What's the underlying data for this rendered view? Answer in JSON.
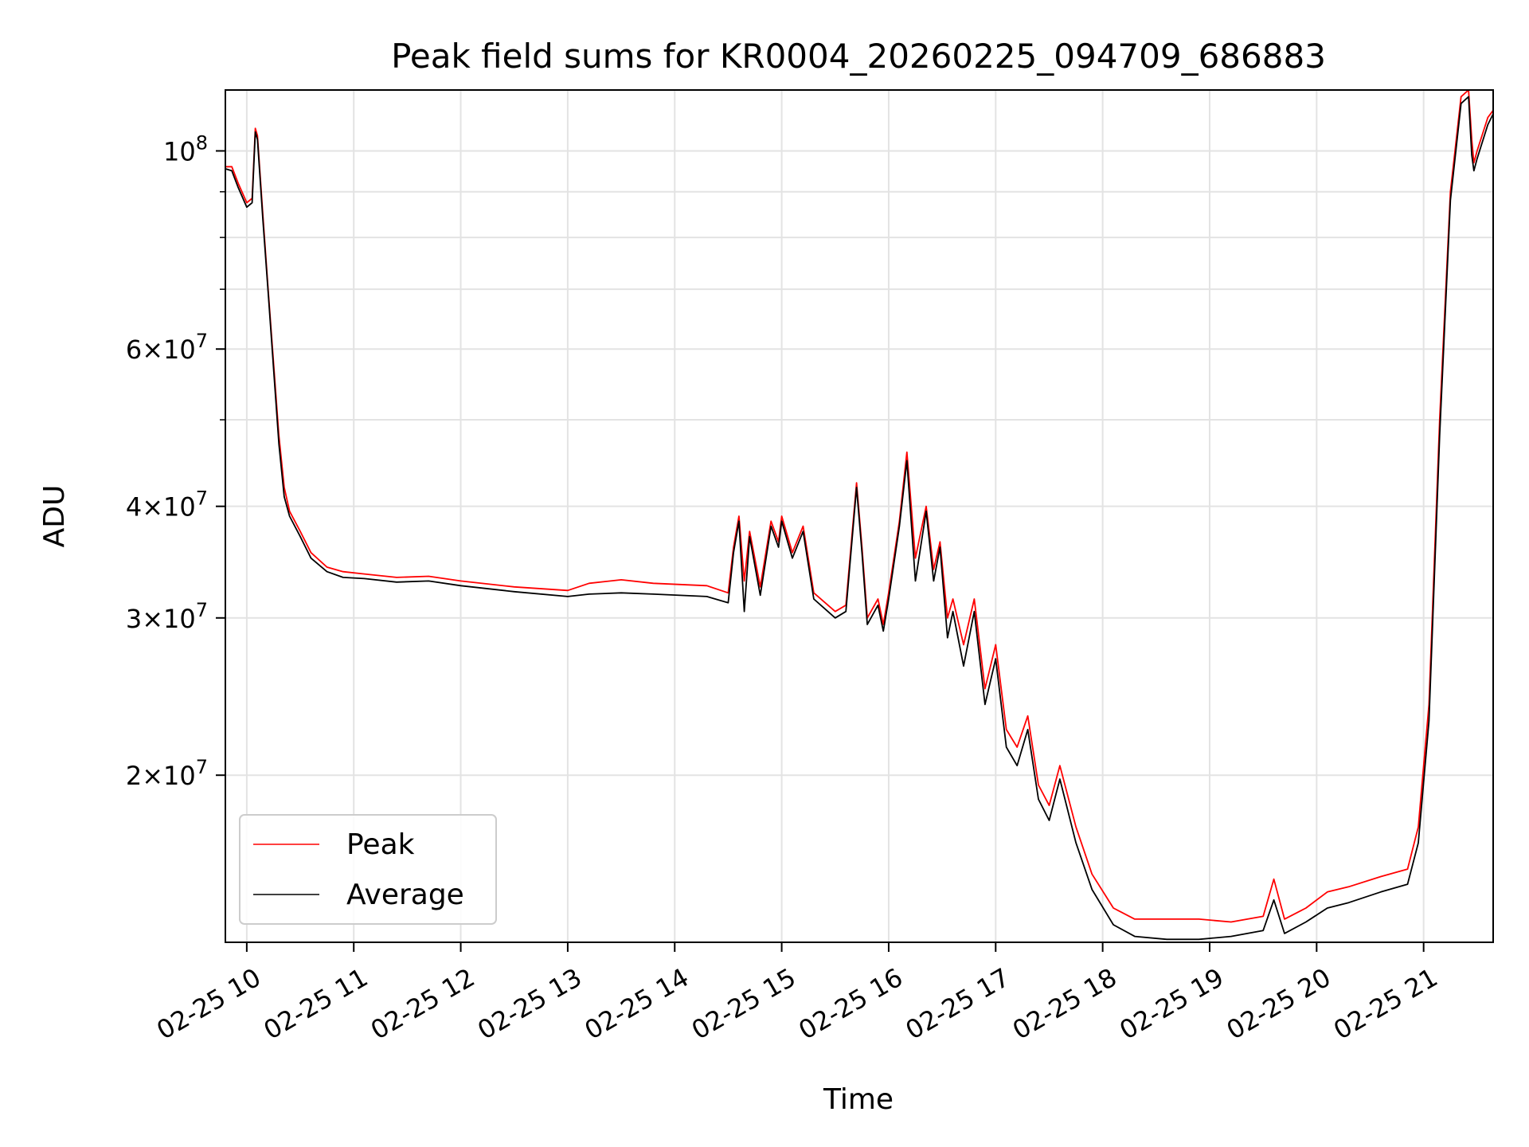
{
  "chart_data": {
    "type": "line",
    "title": "Peak field sums for KR0004_20260225_094709_686883",
    "xlabel": "Time",
    "ylabel": "ADU",
    "yscale": "log",
    "grid": true,
    "legend_position": "lower-left",
    "xlim": [
      9.8,
      21.65
    ],
    "ylim": [
      13000000,
      117000000
    ],
    "x_units": "hours (2026-02-25)",
    "x_ticks": [
      {
        "value": 10,
        "label": "02-25 10"
      },
      {
        "value": 11,
        "label": "02-25 11"
      },
      {
        "value": 12,
        "label": "02-25 12"
      },
      {
        "value": 13,
        "label": "02-25 13"
      },
      {
        "value": 14,
        "label": "02-25 14"
      },
      {
        "value": 15,
        "label": "02-25 15"
      },
      {
        "value": 16,
        "label": "02-25 16"
      },
      {
        "value": 17,
        "label": "02-25 17"
      },
      {
        "value": 18,
        "label": "02-25 18"
      },
      {
        "value": 19,
        "label": "02-25 19"
      },
      {
        "value": 20,
        "label": "02-25 20"
      },
      {
        "value": 21,
        "label": "02-25 21"
      }
    ],
    "y_major_ticks": [
      {
        "value": 100000000,
        "base": "10",
        "exp": "8",
        "mantissa": ""
      },
      {
        "value": 60000000,
        "base": "10",
        "exp": "7",
        "mantissa": "6"
      },
      {
        "value": 40000000,
        "base": "10",
        "exp": "7",
        "mantissa": "4"
      },
      {
        "value": 30000000,
        "base": "10",
        "exp": "7",
        "mantissa": "3"
      },
      {
        "value": 20000000,
        "base": "10",
        "exp": "7",
        "mantissa": "2"
      }
    ],
    "y_minor_ticks": [
      90000000,
      80000000,
      70000000,
      50000000
    ],
    "series": [
      {
        "name": "Peak",
        "color": "#ff0000",
        "points": [
          [
            9.8,
            96000000
          ],
          [
            9.86,
            96000000
          ],
          [
            9.92,
            92000000
          ],
          [
            10.0,
            87500000
          ],
          [
            10.05,
            88500000
          ],
          [
            10.08,
            106000000
          ],
          [
            10.1,
            104000000
          ],
          [
            10.15,
            85000000
          ],
          [
            10.2,
            70000000
          ],
          [
            10.3,
            48000000
          ],
          [
            10.35,
            42000000
          ],
          [
            10.4,
            39500000
          ],
          [
            10.5,
            37500000
          ],
          [
            10.6,
            35500000
          ],
          [
            10.75,
            34200000
          ],
          [
            10.9,
            33800000
          ],
          [
            11.1,
            33600000
          ],
          [
            11.4,
            33300000
          ],
          [
            11.7,
            33400000
          ],
          [
            12.0,
            33000000
          ],
          [
            12.5,
            32500000
          ],
          [
            13.0,
            32200000
          ],
          [
            13.2,
            32800000
          ],
          [
            13.5,
            33100000
          ],
          [
            13.8,
            32800000
          ],
          [
            14.3,
            32600000
          ],
          [
            14.5,
            32000000
          ],
          [
            14.55,
            36000000
          ],
          [
            14.6,
            39000000
          ],
          [
            14.65,
            33000000
          ],
          [
            14.7,
            37500000
          ],
          [
            14.8,
            32500000
          ],
          [
            14.9,
            38500000
          ],
          [
            14.97,
            36500000
          ],
          [
            15.0,
            39000000
          ],
          [
            15.1,
            35500000
          ],
          [
            15.2,
            38000000
          ],
          [
            15.3,
            32000000
          ],
          [
            15.5,
            30500000
          ],
          [
            15.6,
            31000000
          ],
          [
            15.7,
            42500000
          ],
          [
            15.75,
            36000000
          ],
          [
            15.8,
            30000000
          ],
          [
            15.9,
            31500000
          ],
          [
            15.95,
            29500000
          ],
          [
            16.0,
            32000000
          ],
          [
            16.1,
            38500000
          ],
          [
            16.17,
            46000000
          ],
          [
            16.25,
            35000000
          ],
          [
            16.35,
            40000000
          ],
          [
            16.42,
            34000000
          ],
          [
            16.48,
            36500000
          ],
          [
            16.55,
            30000000
          ],
          [
            16.6,
            31500000
          ],
          [
            16.7,
            28000000
          ],
          [
            16.8,
            31500000
          ],
          [
            16.9,
            25000000
          ],
          [
            17.0,
            28000000
          ],
          [
            17.1,
            22500000
          ],
          [
            17.2,
            21500000
          ],
          [
            17.3,
            23300000
          ],
          [
            17.4,
            19500000
          ],
          [
            17.5,
            18500000
          ],
          [
            17.6,
            20500000
          ],
          [
            17.75,
            17500000
          ],
          [
            17.9,
            15500000
          ],
          [
            18.1,
            14200000
          ],
          [
            18.3,
            13800000
          ],
          [
            18.6,
            13800000
          ],
          [
            18.9,
            13800000
          ],
          [
            19.2,
            13700000
          ],
          [
            19.5,
            13900000
          ],
          [
            19.6,
            15300000
          ],
          [
            19.7,
            13800000
          ],
          [
            19.9,
            14200000
          ],
          [
            20.1,
            14800000
          ],
          [
            20.3,
            15000000
          ],
          [
            20.6,
            15400000
          ],
          [
            20.85,
            15700000
          ],
          [
            20.95,
            17500000
          ],
          [
            21.05,
            24000000
          ],
          [
            21.15,
            50000000
          ],
          [
            21.25,
            90000000
          ],
          [
            21.35,
            115000000
          ],
          [
            21.42,
            117000000
          ],
          [
            21.45,
            103000000
          ],
          [
            21.47,
            97000000
          ],
          [
            21.5,
            100000000
          ],
          [
            21.6,
            109000000
          ],
          [
            21.65,
            111000000
          ]
        ]
      },
      {
        "name": "Average",
        "color": "#000000",
        "points": [
          [
            9.8,
            95500000
          ],
          [
            9.86,
            95000000
          ],
          [
            9.92,
            91000000
          ],
          [
            10.0,
            86500000
          ],
          [
            10.05,
            87500000
          ],
          [
            10.08,
            105000000
          ],
          [
            10.1,
            103000000
          ],
          [
            10.15,
            84000000
          ],
          [
            10.2,
            69500000
          ],
          [
            10.3,
            47000000
          ],
          [
            10.35,
            41000000
          ],
          [
            10.4,
            39000000
          ],
          [
            10.5,
            37000000
          ],
          [
            10.6,
            35000000
          ],
          [
            10.75,
            33800000
          ],
          [
            10.9,
            33300000
          ],
          [
            11.1,
            33200000
          ],
          [
            11.4,
            32900000
          ],
          [
            11.7,
            33000000
          ],
          [
            12.0,
            32600000
          ],
          [
            12.5,
            32100000
          ],
          [
            13.0,
            31700000
          ],
          [
            13.2,
            31900000
          ],
          [
            13.5,
            32000000
          ],
          [
            13.8,
            31900000
          ],
          [
            14.3,
            31700000
          ],
          [
            14.5,
            31200000
          ],
          [
            14.55,
            35500000
          ],
          [
            14.6,
            38500000
          ],
          [
            14.65,
            30500000
          ],
          [
            14.7,
            37000000
          ],
          [
            14.8,
            31800000
          ],
          [
            14.9,
            38000000
          ],
          [
            14.97,
            36000000
          ],
          [
            15.0,
            38500000
          ],
          [
            15.1,
            35000000
          ],
          [
            15.2,
            37500000
          ],
          [
            15.3,
            31500000
          ],
          [
            15.5,
            30000000
          ],
          [
            15.6,
            30500000
          ],
          [
            15.7,
            42000000
          ],
          [
            15.75,
            35500000
          ],
          [
            15.8,
            29500000
          ],
          [
            15.9,
            31000000
          ],
          [
            15.95,
            29000000
          ],
          [
            16.0,
            31500000
          ],
          [
            16.1,
            38000000
          ],
          [
            16.17,
            45000000
          ],
          [
            16.25,
            33000000
          ],
          [
            16.35,
            39500000
          ],
          [
            16.42,
            33000000
          ],
          [
            16.48,
            36000000
          ],
          [
            16.55,
            28500000
          ],
          [
            16.6,
            30500000
          ],
          [
            16.7,
            26500000
          ],
          [
            16.8,
            30500000
          ],
          [
            16.9,
            24000000
          ],
          [
            17.0,
            27000000
          ],
          [
            17.1,
            21500000
          ],
          [
            17.2,
            20500000
          ],
          [
            17.3,
            22500000
          ],
          [
            17.4,
            18800000
          ],
          [
            17.5,
            17800000
          ],
          [
            17.6,
            19800000
          ],
          [
            17.75,
            16800000
          ],
          [
            17.9,
            14900000
          ],
          [
            18.1,
            13600000
          ],
          [
            18.3,
            13200000
          ],
          [
            18.6,
            13100000
          ],
          [
            18.9,
            13100000
          ],
          [
            19.2,
            13200000
          ],
          [
            19.5,
            13400000
          ],
          [
            19.6,
            14500000
          ],
          [
            19.7,
            13300000
          ],
          [
            19.9,
            13700000
          ],
          [
            20.1,
            14200000
          ],
          [
            20.3,
            14400000
          ],
          [
            20.6,
            14800000
          ],
          [
            20.85,
            15100000
          ],
          [
            20.95,
            16800000
          ],
          [
            21.05,
            23000000
          ],
          [
            21.15,
            48000000
          ],
          [
            21.25,
            88000000
          ],
          [
            21.35,
            113000000
          ],
          [
            21.42,
            115000000
          ],
          [
            21.45,
            99000000
          ],
          [
            21.47,
            95000000
          ],
          [
            21.5,
            98000000
          ],
          [
            21.6,
            107000000
          ],
          [
            21.65,
            110000000
          ]
        ]
      }
    ]
  }
}
